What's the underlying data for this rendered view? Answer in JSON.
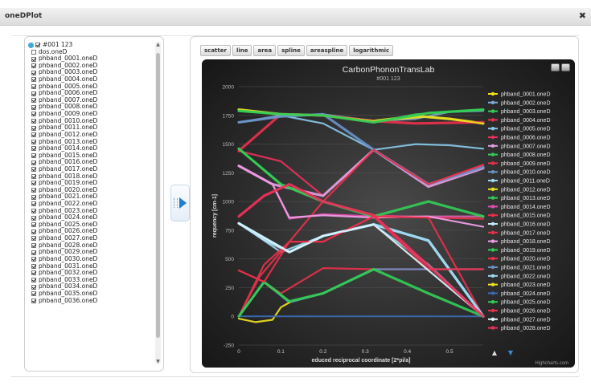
{
  "window": {
    "title": "oneDPlot",
    "close_glyph": "✖"
  },
  "tree": {
    "root_label": "#001 123",
    "items": [
      {
        "label": "dos.oneD",
        "checked": false
      },
      {
        "label": "phband_0001.oneD",
        "checked": true
      },
      {
        "label": "phband_0002.oneD",
        "checked": true
      },
      {
        "label": "phband_0003.oneD",
        "checked": true
      },
      {
        "label": "phband_0004.oneD",
        "checked": true
      },
      {
        "label": "phband_0005.oneD",
        "checked": true
      },
      {
        "label": "phband_0006.oneD",
        "checked": true
      },
      {
        "label": "phband_0007.oneD",
        "checked": true
      },
      {
        "label": "phband_0008.oneD",
        "checked": true
      },
      {
        "label": "phband_0009.oneD",
        "checked": true
      },
      {
        "label": "phband_0010.oneD",
        "checked": true
      },
      {
        "label": "phband_0011.oneD",
        "checked": true
      },
      {
        "label": "phband_0012.oneD",
        "checked": true
      },
      {
        "label": "phband_0013.oneD",
        "checked": true
      },
      {
        "label": "phband_0014.oneD",
        "checked": true
      },
      {
        "label": "phband_0015.oneD",
        "checked": true
      },
      {
        "label": "phband_0016.oneD",
        "checked": true
      },
      {
        "label": "phband_0017.oneD",
        "checked": true
      },
      {
        "label": "phband_0018.oneD",
        "checked": true
      },
      {
        "label": "phband_0019.oneD",
        "checked": true
      },
      {
        "label": "phband_0020.oneD",
        "checked": true
      },
      {
        "label": "phband_0021.oneD",
        "checked": true
      },
      {
        "label": "phband_0022.oneD",
        "checked": true
      },
      {
        "label": "phband_0023.oneD",
        "checked": true
      },
      {
        "label": "phband_0024.oneD",
        "checked": true
      },
      {
        "label": "phband_0025.oneD",
        "checked": true
      },
      {
        "label": "phband_0026.oneD",
        "checked": true
      },
      {
        "label": "phband_0027.oneD",
        "checked": true
      },
      {
        "label": "phband_0028.oneD",
        "checked": true
      },
      {
        "label": "phband_0029.oneD",
        "checked": true
      },
      {
        "label": "phband_0030.oneD",
        "checked": true
      },
      {
        "label": "phband_0031.oneD",
        "checked": true
      },
      {
        "label": "phband_0032.oneD",
        "checked": true
      },
      {
        "label": "phband_0033.oneD",
        "checked": true
      },
      {
        "label": "phband_0034.oneD",
        "checked": true
      },
      {
        "label": "phband_0035.oneD",
        "checked": true
      },
      {
        "label": "phband_0036.oneD",
        "checked": true
      }
    ]
  },
  "toolbar": {
    "buttons": [
      "scatter",
      "line",
      "area",
      "spline",
      "areaspline",
      "logarithmic"
    ]
  },
  "chart_data": {
    "type": "line",
    "title": "CarbonPhononTransLab",
    "subtitle": "#001 123",
    "xlabel": "educed reciprocal coordinate [2*pi/a]",
    "ylabel": "requency [cm-1]",
    "xlim": [
      0,
      0.58
    ],
    "ylim": [
      -250,
      2000
    ],
    "x_ticks": [
      "0",
      "0.1",
      "0.2",
      "0.3",
      "0.4",
      "0.5"
    ],
    "y_ticks": [
      "-250",
      "0",
      "250",
      "500",
      "750",
      "1000",
      "1250",
      "1500",
      "1750",
      "2000"
    ],
    "grid": true,
    "credits": "Highcharts.com",
    "legend_position": "right",
    "legend_scroll": [
      "▲",
      "▼"
    ],
    "series": [
      {
        "name": "phband_0001.oneD",
        "color": "#f0e020",
        "points": [
          [
            0,
            1800
          ],
          [
            0.1,
            1760
          ],
          [
            0.2,
            1750
          ],
          [
            0.32,
            1700
          ],
          [
            0.42,
            1745
          ],
          [
            0.5,
            1720
          ],
          [
            0.58,
            1680
          ]
        ]
      },
      {
        "name": "phband_0002.oneD",
        "color": "#7fa8d8",
        "points": [
          [
            0,
            1690
          ],
          [
            0.1,
            1740
          ],
          [
            0.2,
            1760
          ],
          [
            0.32,
            1700
          ],
          [
            0.42,
            1720
          ],
          [
            0.5,
            1780
          ],
          [
            0.58,
            1790
          ]
        ]
      },
      {
        "name": "phband_0003.oneD",
        "color": "#33cc55",
        "points": [
          [
            0,
            1790
          ],
          [
            0.1,
            1760
          ],
          [
            0.2,
            1750
          ],
          [
            0.32,
            1690
          ],
          [
            0.42,
            1760
          ],
          [
            0.5,
            1780
          ],
          [
            0.58,
            1800
          ]
        ]
      },
      {
        "name": "phband_0004.oneD",
        "color": "#e8304a",
        "points": [
          [
            0,
            1440
          ],
          [
            0.1,
            1760
          ],
          [
            0.2,
            1750
          ],
          [
            0.32,
            1700
          ],
          [
            0.42,
            1680
          ],
          [
            0.58,
            1690
          ]
        ]
      },
      {
        "name": "phband_0005.oneD",
        "color": "#88c8e8",
        "points": [
          [
            0,
            1690
          ],
          [
            0.1,
            1750
          ],
          [
            0.2,
            1680
          ],
          [
            0.32,
            1450
          ],
          [
            0.42,
            1500
          ],
          [
            0.5,
            1490
          ],
          [
            0.58,
            1460
          ]
        ]
      },
      {
        "name": "phband_0006.oneD",
        "color": "#e8305a",
        "points": [
          [
            0,
            1440
          ],
          [
            0.1,
            1350
          ],
          [
            0.2,
            1050
          ],
          [
            0.32,
            1450
          ],
          [
            0.45,
            1150
          ],
          [
            0.58,
            1320
          ]
        ]
      },
      {
        "name": "phband_0007.oneD",
        "color": "#e0a0e0",
        "points": [
          [
            0,
            1310
          ],
          [
            0.08,
            1150
          ],
          [
            0.2,
            1050
          ],
          [
            0.32,
            1450
          ],
          [
            0.45,
            1130
          ],
          [
            0.58,
            1290
          ]
        ]
      },
      {
        "name": "phband_0008.oneD",
        "color": "#33cc55",
        "points": [
          [
            0,
            1460
          ],
          [
            0.1,
            1150
          ],
          [
            0.2,
            1000
          ],
          [
            0.32,
            870
          ],
          [
            0.42,
            870
          ],
          [
            0.58,
            870
          ]
        ]
      },
      {
        "name": "phband_0009.oneD",
        "color": "#e8304a",
        "points": [
          [
            0,
            870
          ],
          [
            0.06,
            1050
          ],
          [
            0.12,
            1150
          ],
          [
            0.2,
            1000
          ],
          [
            0.32,
            880
          ],
          [
            0.45,
            860
          ],
          [
            0.58,
            850
          ]
        ]
      },
      {
        "name": "phband_0010.oneD",
        "color": "#6a90c8",
        "points": [
          [
            0,
            1690
          ],
          [
            0.1,
            1740
          ],
          [
            0.2,
            1760
          ],
          [
            0.32,
            1450
          ],
          [
            0.45,
            1150
          ],
          [
            0.58,
            1300
          ]
        ]
      },
      {
        "name": "phband_0011.oneD",
        "color": "#9ad8f0",
        "points": [
          [
            0,
            810
          ],
          [
            0.1,
            560
          ],
          [
            0.2,
            700
          ],
          [
            0.32,
            800
          ],
          [
            0.45,
            450
          ],
          [
            0.58,
            0
          ]
        ]
      },
      {
        "name": "phband_0012.oneD",
        "color": "#e8e020",
        "points": [
          [
            0,
            1800
          ],
          [
            0.1,
            1760
          ],
          [
            0.2,
            1750
          ],
          [
            0.32,
            1700
          ],
          [
            0.45,
            1740
          ],
          [
            0.58,
            1680
          ]
        ]
      },
      {
        "name": "phband_0013.oneD",
        "color": "#33cc55",
        "points": [
          [
            0,
            1790
          ],
          [
            0.1,
            1760
          ],
          [
            0.2,
            1750
          ],
          [
            0.32,
            1690
          ],
          [
            0.45,
            1770
          ],
          [
            0.58,
            1800
          ]
        ]
      },
      {
        "name": "phband_0014.oneD",
        "color": "#e050b0",
        "points": [
          [
            0,
            1310
          ],
          [
            0.08,
            1150
          ],
          [
            0.12,
            850
          ],
          [
            0.2,
            890
          ],
          [
            0.32,
            870
          ],
          [
            0.45,
            870
          ],
          [
            0.58,
            870
          ]
        ]
      },
      {
        "name": "phband_0015.oneD",
        "color": "#e8304a",
        "points": [
          [
            0,
            400
          ],
          [
            0.06,
            300
          ],
          [
            0.1,
            200
          ],
          [
            0.2,
            420
          ],
          [
            0.32,
            410
          ],
          [
            0.45,
            410
          ],
          [
            0.58,
            410
          ]
        ]
      },
      {
        "name": "phband_0016.oneD",
        "color": "#bfe8f8",
        "points": [
          [
            0,
            810
          ],
          [
            0.06,
            670
          ],
          [
            0.12,
            560
          ],
          [
            0.2,
            700
          ],
          [
            0.32,
            800
          ],
          [
            0.45,
            660
          ],
          [
            0.58,
            0
          ]
        ]
      },
      {
        "name": "phband_0017.oneD",
        "color": "#e8304a",
        "points": [
          [
            0,
            0
          ],
          [
            0.06,
            450
          ],
          [
            0.12,
            650
          ],
          [
            0.2,
            1000
          ],
          [
            0.32,
            1450
          ],
          [
            0.45,
            1150
          ],
          [
            0.58,
            1320
          ]
        ]
      },
      {
        "name": "phband_0018.oneD",
        "color": "#f0a0e8",
        "points": [
          [
            0,
            1310
          ],
          [
            0.08,
            1150
          ],
          [
            0.12,
            860
          ],
          [
            0.2,
            880
          ],
          [
            0.32,
            860
          ],
          [
            0.45,
            870
          ],
          [
            0.58,
            780
          ]
        ]
      },
      {
        "name": "phband_0019.oneD",
        "color": "#33cc55",
        "points": [
          [
            0,
            1460
          ],
          [
            0.1,
            1150
          ],
          [
            0.2,
            1000
          ],
          [
            0.32,
            870
          ],
          [
            0.45,
            1000
          ],
          [
            0.58,
            870
          ]
        ]
      },
      {
        "name": "phband_0020.oneD",
        "color": "#e8304a",
        "points": [
          [
            0,
            0
          ],
          [
            0.05,
            350
          ],
          [
            0.12,
            650
          ],
          [
            0.2,
            650
          ],
          [
            0.32,
            870
          ],
          [
            0.45,
            860
          ],
          [
            0.58,
            0
          ]
        ]
      },
      {
        "name": "phband_0021.oneD",
        "color": "#6a90c8",
        "points": [
          [
            0,
            0
          ],
          [
            0.06,
            300
          ],
          [
            0.12,
            120
          ],
          [
            0.2,
            200
          ],
          [
            0.32,
            410
          ],
          [
            0.45,
            410
          ],
          [
            0.58,
            410
          ]
        ]
      },
      {
        "name": "phband_0022.oneD",
        "color": "#9ad8f0",
        "points": [
          [
            0,
            810
          ],
          [
            0.12,
            560
          ],
          [
            0.2,
            700
          ],
          [
            0.32,
            800
          ],
          [
            0.45,
            660
          ],
          [
            0.58,
            0
          ]
        ]
      },
      {
        "name": "phband_0023.oneD",
        "color": "#f0e020",
        "points": [
          [
            0,
            -20
          ],
          [
            0.04,
            -50
          ],
          [
            0.08,
            -30
          ],
          [
            0.1,
            80
          ],
          [
            0.12,
            120
          ]
        ]
      },
      {
        "name": "phband_0024.oneD",
        "color": "#3a6ab0",
        "points": [
          [
            0,
            0
          ],
          [
            0.1,
            0
          ],
          [
            0.2,
            0
          ],
          [
            0.3,
            0
          ],
          [
            0.4,
            0
          ],
          [
            0.5,
            0
          ],
          [
            0.58,
            0
          ]
        ]
      },
      {
        "name": "phband_0025.oneD",
        "color": "#33cc55",
        "points": [
          [
            0,
            0
          ],
          [
            0.06,
            300
          ],
          [
            0.12,
            130
          ],
          [
            0.2,
            200
          ],
          [
            0.32,
            410
          ],
          [
            0.45,
            200
          ],
          [
            0.58,
            0
          ]
        ]
      },
      {
        "name": "phband_0026.oneD",
        "color": "#e8304a",
        "points": [
          [
            0,
            400
          ],
          [
            0.06,
            300
          ],
          [
            0.12,
            650
          ],
          [
            0.2,
            650
          ],
          [
            0.32,
            870
          ],
          [
            0.45,
            410
          ],
          [
            0.58,
            410
          ]
        ]
      },
      {
        "name": "phband_0027.oneD",
        "color": "#dff4fc",
        "points": [
          [
            0,
            810
          ],
          [
            0.12,
            560
          ],
          [
            0.2,
            700
          ],
          [
            0.32,
            800
          ],
          [
            0.58,
            0
          ]
        ]
      },
      {
        "name": "phband_0028.oneD",
        "color": "#e8305a",
        "points": [
          [
            0,
            870
          ],
          [
            0.06,
            1050
          ],
          [
            0.12,
            1150
          ],
          [
            0.2,
            1000
          ],
          [
            0.32,
            880
          ],
          [
            0.58,
            0
          ]
        ]
      }
    ]
  }
}
